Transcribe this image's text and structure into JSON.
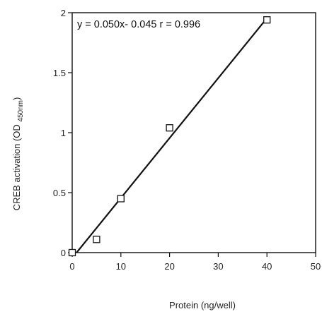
{
  "chart_data": {
    "type": "scatter",
    "xlabel": "Protein (ng/well)",
    "ylabel": "CREB activation (OD 450nm)",
    "ylabel_main": "CREB activation (OD ",
    "ylabel_sub": "450nm",
    "ylabel_close": ")",
    "annotation": "y = 0.050x- 0.045  r = 0.996",
    "xlim": [
      0,
      50
    ],
    "ylim": [
      0,
      2
    ],
    "x_ticks": [
      0,
      10,
      20,
      30,
      40,
      50
    ],
    "y_ticks": [
      0,
      0.5,
      1,
      1.5,
      2
    ],
    "x_tick_labels": [
      "0",
      "10",
      "20",
      "30",
      "40",
      "50"
    ],
    "y_tick_labels": [
      "0",
      "0.5",
      "1",
      "1.5",
      "2"
    ],
    "points": [
      {
        "x": 0,
        "y": 0.0
      },
      {
        "x": 5,
        "y": 0.11
      },
      {
        "x": 10,
        "y": 0.45
      },
      {
        "x": 20,
        "y": 1.04
      },
      {
        "x": 40,
        "y": 1.94
      }
    ],
    "fit": {
      "slope": 0.05,
      "intercept": -0.045,
      "x_range": [
        0,
        40
      ]
    },
    "marker": "open-square",
    "colors": {
      "line": "#111111",
      "marker": "#111111",
      "axis": "#111111"
    },
    "grid": false
  }
}
